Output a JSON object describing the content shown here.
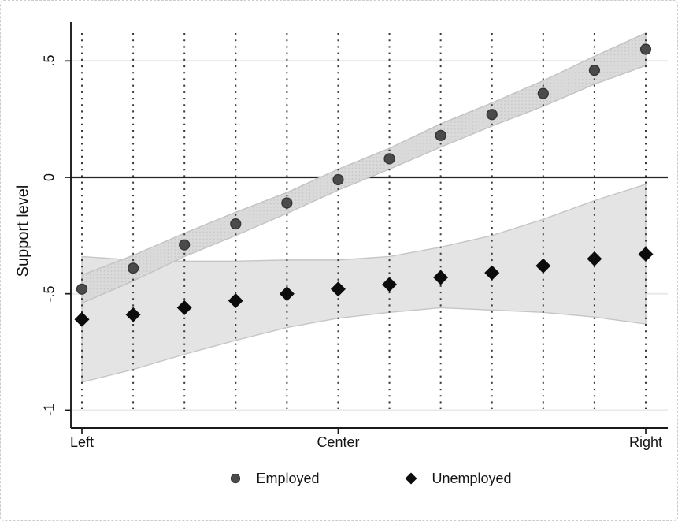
{
  "chart_data": {
    "type": "scatter",
    "title": "",
    "ylabel": "Support level",
    "xlabel": "",
    "grid": "horizontal-light plus vertical-dotted at every data column",
    "legend_position": "bottom-center",
    "x_index_count": 12,
    "x_axis": {
      "ticks": [
        {
          "index": 0,
          "label": "Left"
        },
        {
          "index": 5,
          "label": "Center"
        },
        {
          "index": 11,
          "label": "Right"
        }
      ]
    },
    "y_axis": {
      "ticks": [
        {
          "value": 0.5,
          "label": ".5"
        },
        {
          "value": 0,
          "label": "0"
        },
        {
          "value": -0.5,
          "label": "-.5"
        },
        {
          "value": -1,
          "label": "-1"
        }
      ],
      "range": [
        -1.08,
        0.67
      ],
      "zero_reference_line": true
    },
    "series": [
      {
        "name": "Employed",
        "marker": "circle",
        "color": "#4b4b4b",
        "marker_edge": "#353535",
        "band_color": "#dadada",
        "band_edge": "#c3c3c3",
        "values": [
          -0.48,
          -0.39,
          -0.29,
          -0.2,
          -0.11,
          -0.01,
          0.08,
          0.18,
          0.27,
          0.36,
          0.46,
          0.55
        ],
        "ci_upper": [
          -0.42,
          -0.335,
          -0.24,
          -0.15,
          -0.065,
          0.035,
          0.125,
          0.23,
          0.32,
          0.415,
          0.52,
          0.62
        ],
        "ci_lower": [
          -0.54,
          -0.445,
          -0.34,
          -0.25,
          -0.155,
          -0.055,
          0.035,
          0.13,
          0.22,
          0.305,
          0.4,
          0.48
        ]
      },
      {
        "name": "Unemployed",
        "marker": "diamond",
        "color": "#0c0c0c",
        "marker_edge": "#0c0c0c",
        "band_color": "#e4e4e4",
        "band_edge": "#c6c6c6",
        "values": [
          -0.61,
          -0.59,
          -0.56,
          -0.53,
          -0.5,
          -0.48,
          -0.46,
          -0.43,
          -0.41,
          -0.38,
          -0.35,
          -0.33
        ],
        "ci_upper": [
          -0.34,
          -0.355,
          -0.36,
          -0.36,
          -0.355,
          -0.355,
          -0.34,
          -0.3,
          -0.25,
          -0.18,
          -0.1,
          -0.03
        ],
        "ci_lower": [
          -0.88,
          -0.825,
          -0.76,
          -0.7,
          -0.645,
          -0.605,
          -0.58,
          -0.56,
          -0.57,
          -0.58,
          -0.6,
          -0.63
        ]
      }
    ],
    "legend": [
      {
        "label": "Employed",
        "marker": "circle"
      },
      {
        "label": "Unemployed",
        "marker": "diamond"
      }
    ],
    "colors": {
      "axis": "#1a1a1a",
      "zero_line": "#262626",
      "light_grid": "#e9e9e9",
      "dotted_grid": "#3a3a3a",
      "background": "#ffffff"
    }
  }
}
